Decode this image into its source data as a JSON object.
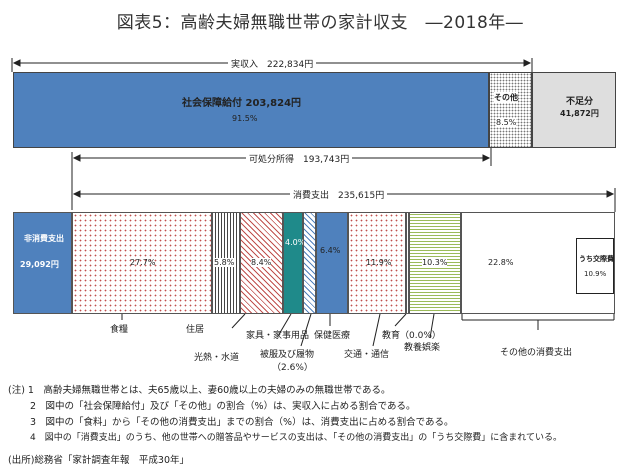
{
  "title": "図表5：高齢夫婦無職世帯の家計収支　―2018年―",
  "income": {
    "bracket_label": "実収入　222,834円",
    "social_security_label": "社会保障給付 203,824円",
    "social_security_pct": "91.5%",
    "other_label": "その他",
    "other_pct": "8.5%",
    "shortfall_label": "不足分",
    "shortfall_value": "41,872円",
    "disposable_label": "可処分所得　193,743円",
    "consumption_label": "消費支出　235,615円"
  },
  "expenditure": {
    "non_consumption_label": "非消費支出",
    "non_consumption_value": "29,092円",
    "segments": [
      {
        "pct": "27.7%",
        "name": "食糧"
      },
      {
        "pct": "5.8%",
        "name": "住居"
      },
      {
        "pct": "8.4%",
        "name": "光熱・水道"
      },
      {
        "pct": "4.0%",
        "name": "家具・家事用品"
      },
      {
        "pct": "",
        "name": "被服及び履物",
        "sub": "（2.6%）"
      },
      {
        "pct": "6.4%",
        "name": "保健医療"
      },
      {
        "pct": "11.9%",
        "name": "交通・通信"
      },
      {
        "pct": "",
        "name": "教育（0.0%）"
      },
      {
        "pct": "10.3%",
        "name": "教養娯楽"
      },
      {
        "pct": "22.8%",
        "name": "その他の消費支出"
      }
    ],
    "inset_label": "うち交際費",
    "inset_pct": "10.9%"
  },
  "notes": [
    "(注) 1　高齢夫婦無職世帯とは、夫65歳以上、妻60歳以上の夫婦のみの無職世帯である。",
    "2　図中の「社会保障給付」及び「その他」の割合（%）は、実収入に占める割合である。",
    "3　図中の「食料」から「その他の消費支出」までの割合（%）は、消費支出に占める割合である。",
    "4　図中の「消費支出」のうち、他の世帯への贈答品やサービスの支出は、「その他の消費支出」の「うち交際費」に含まれている。"
  ],
  "source": "(出所)総務省「家計調査年報　平成30年」"
}
